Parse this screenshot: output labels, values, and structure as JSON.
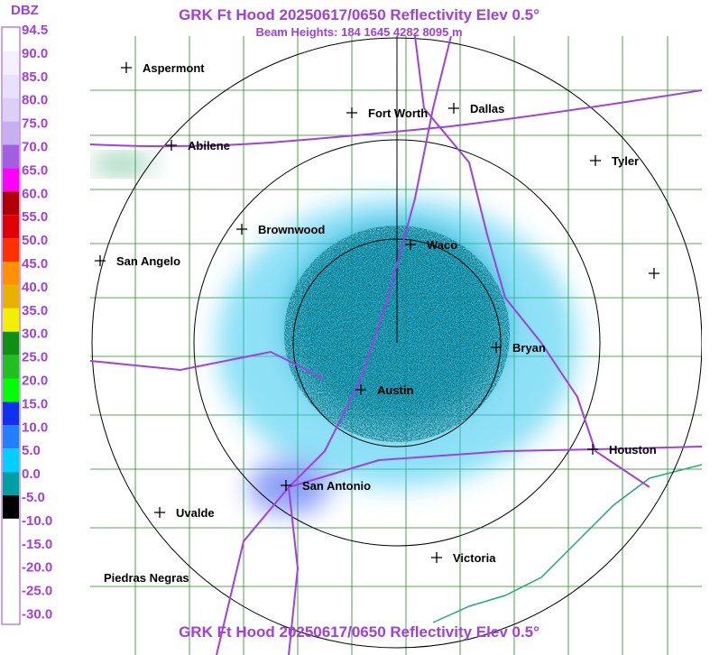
{
  "header": {
    "title": "GRK Ft Hood 20250617/0650 Reflectivity Elev 0.5°",
    "subtitle": "Beam Heights: 184 1645 4282 8095 m",
    "footer": "GRK Ft Hood 20250617/0650 Reflectivity Elev 0.5°"
  },
  "legend": {
    "title": "DBZ",
    "labels": [
      "94.5",
      "90.0",
      "85.0",
      "80.0",
      "75.0",
      "70.0",
      "65.0",
      "60.0",
      "55.0",
      "50.0",
      "45.0",
      "40.0",
      "35.0",
      "30.0",
      "25.0",
      "20.0",
      "15.0",
      "10.0",
      "5.0",
      "0.0",
      "-5.0",
      "-10.0",
      "-15.0",
      "-20.0",
      "-25.0",
      "-30.0"
    ]
  },
  "cities": [
    "Aspermont",
    "Fort Worth",
    "Dallas",
    "Abilene",
    "Tyler",
    "Brownwood",
    "Waco",
    "San Angelo",
    "Bryan",
    "Austin",
    "Houston",
    "San Antonio",
    "Uvalde",
    "Victoria",
    "Piedras Negras"
  ]
}
